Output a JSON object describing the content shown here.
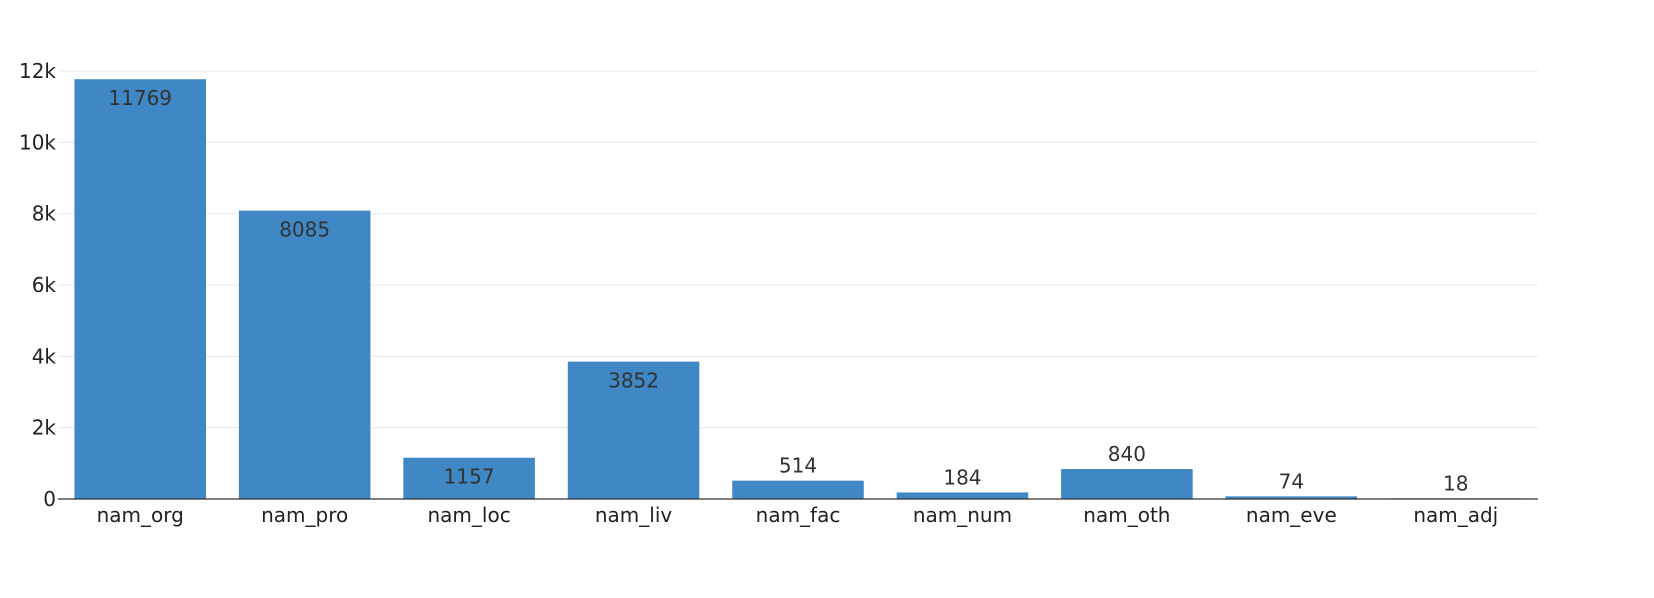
{
  "chart_data": {
    "type": "bar",
    "title": "",
    "xlabel": "",
    "ylabel": "",
    "categories": [
      "nam_org",
      "nam_pro",
      "nam_loc",
      "nam_liv",
      "nam_fac",
      "nam_num",
      "nam_oth",
      "nam_eve",
      "nam_adj"
    ],
    "values": [
      11769,
      8085,
      1157,
      3852,
      514,
      184,
      840,
      74,
      18
    ],
    "data_labels": [
      "11769",
      "8085",
      "1157",
      "3852",
      "514",
      "184",
      "840",
      "74",
      "18"
    ],
    "ylim": [
      0,
      12000
    ],
    "y_ticks": [
      0,
      2000,
      4000,
      6000,
      8000,
      10000,
      12000
    ],
    "y_tick_labels": [
      "0",
      "2k",
      "4k",
      "6k",
      "8k",
      "10k",
      "12k"
    ],
    "grid": true,
    "bar_color": "#3f88c5",
    "legend": "none"
  }
}
